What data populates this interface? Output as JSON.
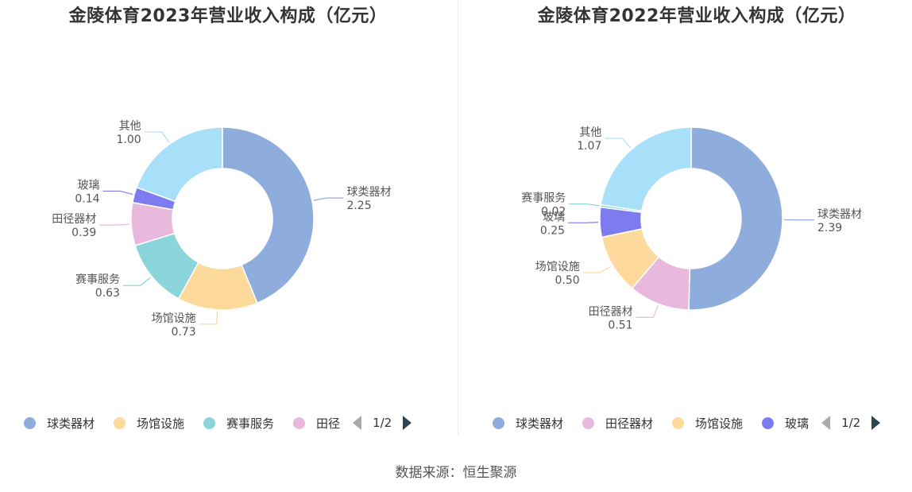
{
  "source_label": "数据来源：恒生聚源",
  "charts": [
    {
      "title": "金陵体育2023年营业收入构成（亿元）",
      "legend_items": [
        {
          "name": "球类器材",
          "color": "#8eaddc"
        },
        {
          "name": "场馆设施",
          "color": "#fdd99b"
        },
        {
          "name": "赛事服务",
          "color": "#89d5d9"
        },
        {
          "name": "田径",
          "color": "#e8b9dd"
        }
      ],
      "pager": "1/2"
    },
    {
      "title": "金陵体育2022年营业收入构成（亿元）",
      "legend_items": [
        {
          "name": "球类器材",
          "color": "#8eaddc"
        },
        {
          "name": "田径器材",
          "color": "#e8b9dd"
        },
        {
          "name": "场馆设施",
          "color": "#fdd99b"
        },
        {
          "name": "玻璃",
          "color": "#7c7cf0"
        }
      ],
      "pager": "1/2"
    }
  ],
  "chart_data": [
    {
      "type": "pie",
      "title": "金陵体育2023年营业收入构成（亿元）",
      "donut": true,
      "slices": [
        {
          "name": "球类器材",
          "value": 2.25,
          "label": "2.25",
          "color": "#8eaddc"
        },
        {
          "name": "场馆设施",
          "value": 0.73,
          "label": "0.73",
          "color": "#fdd99b"
        },
        {
          "name": "赛事服务",
          "value": 0.63,
          "label": "0.63",
          "color": "#89d5d9"
        },
        {
          "name": "田径器材",
          "value": 0.39,
          "label": "0.39",
          "color": "#e8b9dd"
        },
        {
          "name": "玻璃",
          "value": 0.14,
          "label": "0.14",
          "color": "#7c7cf0"
        },
        {
          "name": "其他",
          "value": 1.0,
          "label": "1.00",
          "color": "#a8e0fa"
        }
      ]
    },
    {
      "type": "pie",
      "title": "金陵体育2022年营业收入构成（亿元）",
      "donut": true,
      "slices": [
        {
          "name": "球类器材",
          "value": 2.39,
          "label": "2.39",
          "color": "#8eaddc"
        },
        {
          "name": "田径器材",
          "value": 0.51,
          "label": "0.51",
          "color": "#e8b9dd"
        },
        {
          "name": "场馆设施",
          "value": 0.5,
          "label": "0.50",
          "color": "#fdd99b"
        },
        {
          "name": "玻璃",
          "value": 0.25,
          "label": "0.25",
          "color": "#7c7cf0"
        },
        {
          "name": "赛事服务",
          "value": 0.02,
          "label": "0.02",
          "color": "#89d5d9"
        },
        {
          "name": "其他",
          "value": 1.07,
          "label": "1.07",
          "color": "#a8e0fa"
        }
      ]
    }
  ]
}
